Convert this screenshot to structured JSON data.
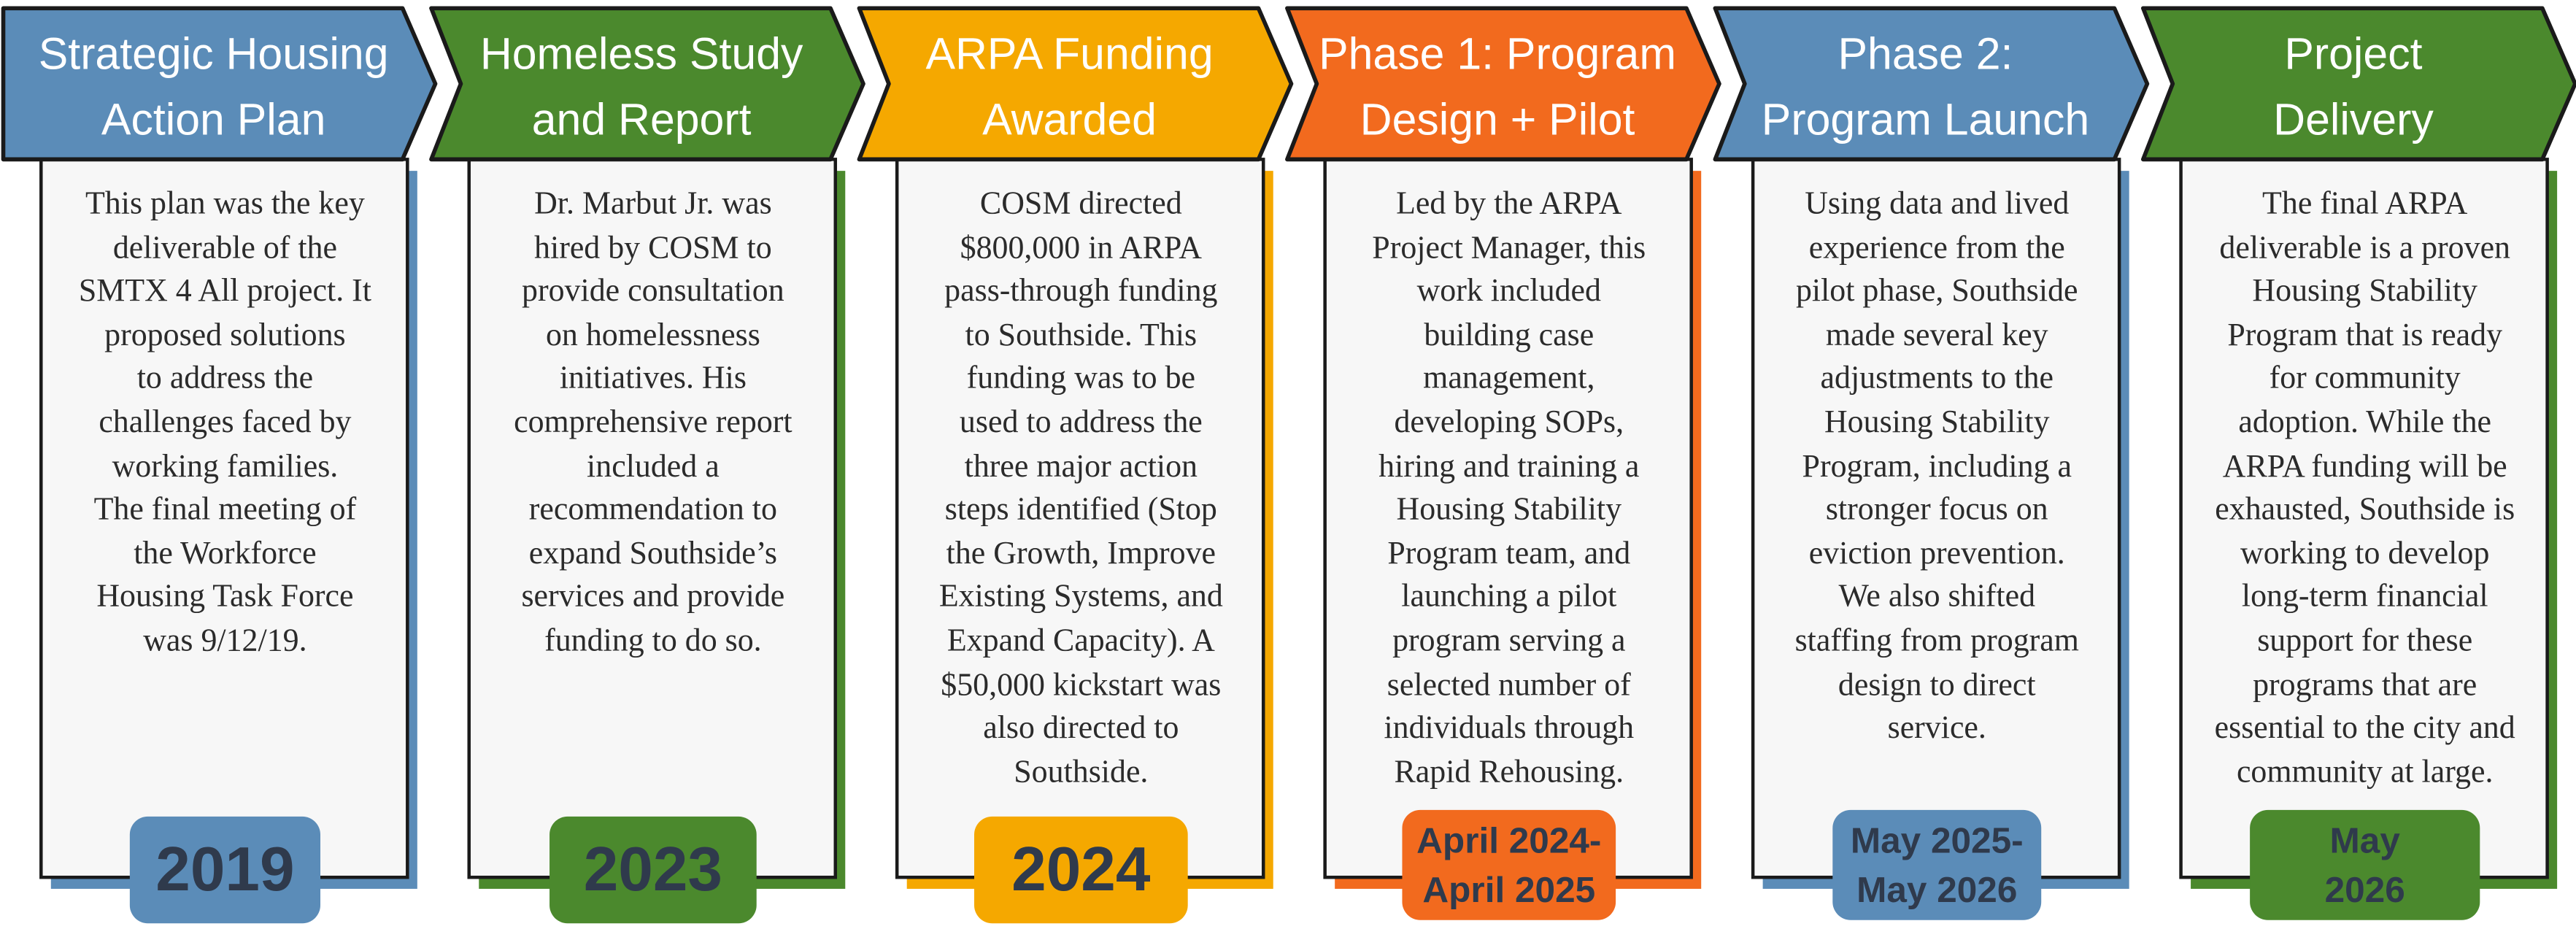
{
  "columns": [
    {
      "color": "#5b8cb8",
      "title": [
        "Strategic Housing",
        "Action Plan"
      ],
      "body": [
        "This plan was the key",
        "deliverable of the",
        "SMTX 4 All project. It",
        "proposed solutions",
        "to address the",
        "challenges faced by",
        "working families.",
        "The final meeting of",
        "the Workforce",
        "Housing Task Force",
        "was 9/12/19."
      ],
      "date": [
        "2019"
      ]
    },
    {
      "color": "#4b892d",
      "title": [
        "Homeless Study",
        "and Report"
      ],
      "body": [
        "Dr. Marbut Jr. was",
        "hired by COSM to",
        "provide consultation",
        "on homelessness",
        "initiatives. His",
        "comprehensive report",
        "included a",
        "recommendation to",
        "expand Southside’s",
        "services and provide",
        "funding to do so."
      ],
      "date": [
        "2023"
      ]
    },
    {
      "color": "#f5a800",
      "title": [
        "ARPA Funding",
        "Awarded"
      ],
      "body": [
        "COSM directed",
        "$800,000 in ARPA",
        "pass-through funding",
        "to Southside. This",
        "funding was to be",
        "used to address the",
        "three major action",
        "steps identified (Stop",
        "the Growth, Improve",
        "Existing Systems, and",
        "Expand Capacity). A",
        "$50,000 kickstart was",
        "also directed to",
        "Southside."
      ],
      "date": [
        "2024"
      ]
    },
    {
      "color": "#f26a1e",
      "title": [
        "Phase 1: Program",
        "Design + Pilot"
      ],
      "body": [
        "Led by the ARPA",
        "Project Manager, this",
        "work included",
        "building case",
        "management,",
        "developing SOPs,",
        "hiring and training a",
        "Housing Stability",
        "Program team, and",
        "launching a pilot",
        "program serving a",
        "selected number of",
        "individuals through",
        "Rapid Rehousing."
      ],
      "date": [
        "April 2024-",
        "April 2025"
      ]
    },
    {
      "color": "#5b8cb8",
      "title": [
        "Phase 2:",
        "Program Launch"
      ],
      "body": [
        "Using data and lived",
        "experience from the",
        "pilot phase, Southside",
        "made several key",
        "adjustments to the",
        "Housing Stability",
        "Program, including a",
        "stronger focus on",
        "eviction prevention.",
        "We also shifted",
        "staffing from program",
        "design to direct",
        "service."
      ],
      "date": [
        "May 2025-",
        "May 2026"
      ]
    },
    {
      "color": "#4b892d",
      "title": [
        "Project",
        "Delivery"
      ],
      "body": [
        "The final ARPA",
        "deliverable is a proven",
        "Housing Stability",
        "Program that is ready",
        "for community",
        "adoption. While the",
        "ARPA funding will be",
        "exhausted, Southside is",
        "working to develop",
        "long-term financial",
        "support for these",
        "programs that are",
        "essential to the city and",
        "community at large."
      ],
      "date": [
        "May",
        "2026"
      ]
    }
  ]
}
